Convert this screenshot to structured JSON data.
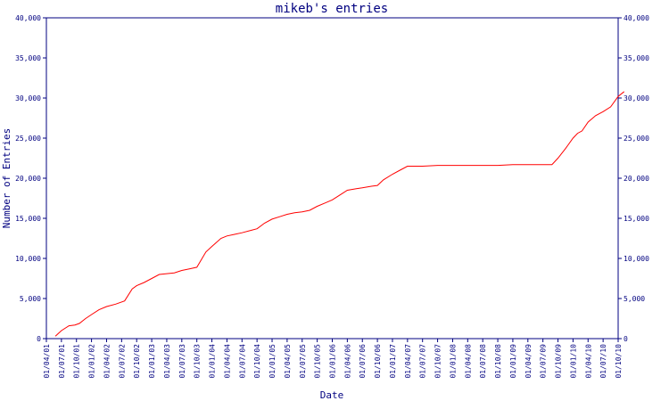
{
  "chart_data": {
    "type": "line",
    "title": "mikeb's entries",
    "xlabel": "Date",
    "ylabel": "Number of Entries",
    "ylim": [
      0,
      40000
    ],
    "yticks": [
      0,
      5000,
      10000,
      15000,
      20000,
      25000,
      30000,
      35000,
      40000
    ],
    "ytick_labels": [
      "0",
      "5,000",
      "10,000",
      "15,000",
      "20,000",
      "25,000",
      "30,000",
      "35,000",
      "40,000"
    ],
    "xtick_labels": [
      "01/04/01",
      "01/07/01",
      "01/10/01",
      "01/01/02",
      "01/04/02",
      "01/07/02",
      "01/10/02",
      "01/01/03",
      "01/04/03",
      "01/07/03",
      "01/10/03",
      "01/01/04",
      "01/04/04",
      "01/07/04",
      "01/10/04",
      "01/01/05",
      "01/04/05",
      "01/07/05",
      "01/10/05",
      "01/01/06",
      "01/04/06",
      "01/07/06",
      "01/10/06",
      "01/01/07",
      "01/04/07",
      "01/07/07",
      "01/10/07",
      "01/01/08",
      "01/04/08",
      "01/07/08",
      "01/10/08",
      "01/01/09",
      "01/04/09",
      "01/07/09",
      "01/10/09",
      "01/01/10",
      "01/04/10",
      "01/07/10",
      "01/10/10"
    ],
    "grid": false,
    "color": "#ff0000",
    "axis_color": "#000080",
    "series": [
      {
        "x": [
          0.6,
          1.0,
          1.5,
          1.9,
          2.2,
          2.6,
          3.0,
          3.5,
          4.0,
          4.6,
          5.2,
          5.7,
          6.0,
          6.5,
          7.0,
          7.5,
          8.0,
          8.5,
          9.0,
          9.5,
          10.0,
          10.6,
          11.0,
          11.6,
          12.0,
          12.5,
          13.0,
          13.6,
          14.0,
          14.5,
          15.0,
          15.5,
          16.0,
          16.5,
          17.0,
          17.5,
          18.0,
          18.5,
          19.0,
          19.5,
          20.0,
          20.6,
          21.0,
          21.6,
          22.0,
          22.4,
          23.0,
          23.5,
          24.0,
          24.5,
          25.0,
          26.0,
          27.0,
          28.0,
          29.0,
          30.0,
          31.0,
          32.0,
          33.0,
          33.6,
          34.0,
          34.5,
          35.0,
          35.3,
          35.6,
          36.0,
          36.5,
          37.0,
          37.5,
          38.0,
          38.4
        ],
        "y": [
          300,
          1000,
          1600,
          1700,
          1900,
          2500,
          3000,
          3600,
          4000,
          4300,
          4700,
          6200,
          6600,
          7000,
          7500,
          8000,
          8100,
          8200,
          8500,
          8700,
          8900,
          10800,
          11500,
          12500,
          12800,
          13000,
          13200,
          13500,
          13700,
          14400,
          14900,
          15200,
          15500,
          15700,
          15800,
          16000,
          16500,
          16900,
          17300,
          17900,
          18500,
          18700,
          18800,
          19000,
          19100,
          19800,
          20500,
          21000,
          21500,
          21500,
          21500,
          21600,
          21600,
          21600,
          21600,
          21600,
          21700,
          21700,
          21700,
          21700,
          22500,
          23700,
          25000,
          25600,
          25900,
          27000,
          27800,
          28300,
          28900,
          30200,
          30800
        ]
      }
    ]
  }
}
